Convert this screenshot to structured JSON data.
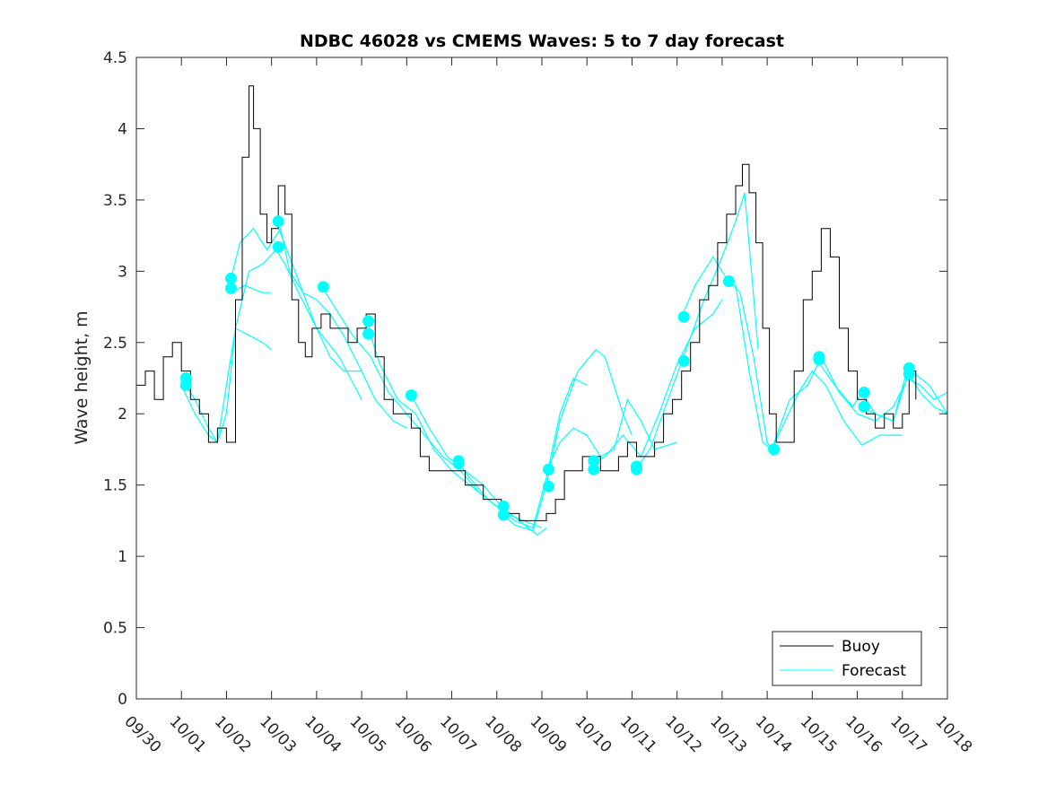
{
  "chart_data": {
    "type": "line",
    "title": "NDBC 46028 vs CMEMS Waves: 5 to 7 day forecast",
    "xlabel": "",
    "ylabel": "Wave height, m",
    "xlim": [
      0,
      18
    ],
    "ylim": [
      0,
      4.5
    ],
    "x_ticks": [
      {
        "value": 0,
        "label": "09/30"
      },
      {
        "value": 1,
        "label": "10/01"
      },
      {
        "value": 2,
        "label": "10/02"
      },
      {
        "value": 3,
        "label": "10/03"
      },
      {
        "value": 4,
        "label": "10/04"
      },
      {
        "value": 5,
        "label": "10/05"
      },
      {
        "value": 6,
        "label": "10/06"
      },
      {
        "value": 7,
        "label": "10/07"
      },
      {
        "value": 8,
        "label": "10/08"
      },
      {
        "value": 9,
        "label": "10/09"
      },
      {
        "value": 10,
        "label": "10/10"
      },
      {
        "value": 11,
        "label": "10/11"
      },
      {
        "value": 12,
        "label": "10/12"
      },
      {
        "value": 13,
        "label": "10/13"
      },
      {
        "value": 14,
        "label": "10/14"
      },
      {
        "value": 15,
        "label": "10/15"
      },
      {
        "value": 16,
        "label": "10/16"
      },
      {
        "value": 17,
        "label": "10/17"
      },
      {
        "value": 18,
        "label": "10/18"
      }
    ],
    "y_ticks": [
      {
        "value": 0,
        "label": "0"
      },
      {
        "value": 0.5,
        "label": "0.5"
      },
      {
        "value": 1,
        "label": "1"
      },
      {
        "value": 1.5,
        "label": "1.5"
      },
      {
        "value": 2,
        "label": "2"
      },
      {
        "value": 2.5,
        "label": "2.5"
      },
      {
        "value": 3,
        "label": "3"
      },
      {
        "value": 3.5,
        "label": "3.5"
      },
      {
        "value": 4,
        "label": "4"
      },
      {
        "value": 4.5,
        "label": "4.5"
      }
    ],
    "legend": {
      "position": "bottom-right",
      "entries": [
        {
          "label": "Buoy",
          "color": "#000000"
        },
        {
          "label": "Forecast",
          "color": "#00ffff"
        }
      ]
    },
    "colors": {
      "buoy": "#000000",
      "forecast": "#00ffff",
      "axes": "#262626"
    },
    "buoy": {
      "name": "Buoy",
      "x": [
        0,
        0.2,
        0.4,
        0.6,
        0.8,
        1.0,
        1.2,
        1.4,
        1.6,
        1.8,
        2.0,
        2.2,
        2.35,
        2.5,
        2.6,
        2.75,
        2.9,
        3.0,
        3.15,
        3.3,
        3.45,
        3.6,
        3.75,
        3.9,
        4.1,
        4.3,
        4.5,
        4.7,
        4.9,
        5.1,
        5.3,
        5.5,
        5.7,
        5.9,
        6.1,
        6.3,
        6.5,
        6.7,
        6.9,
        7.1,
        7.3,
        7.5,
        7.7,
        7.9,
        8.1,
        8.3,
        8.5,
        8.7,
        8.9,
        9.1,
        9.3,
        9.5,
        9.7,
        9.9,
        10.1,
        10.3,
        10.5,
        10.7,
        10.9,
        11.1,
        11.3,
        11.5,
        11.7,
        11.9,
        12.1,
        12.3,
        12.5,
        12.7,
        12.9,
        13.1,
        13.3,
        13.45,
        13.6,
        13.75,
        13.9,
        14.05,
        14.2,
        14.4,
        14.6,
        14.8,
        15.0,
        15.2,
        15.4,
        15.6,
        15.8,
        16.0,
        16.2,
        16.4,
        16.6,
        16.8,
        17.0,
        17.15,
        17.3
      ],
      "values": [
        2.2,
        2.3,
        2.1,
        2.4,
        2.5,
        2.3,
        2.1,
        2.0,
        1.8,
        1.9,
        1.8,
        2.8,
        3.8,
        4.3,
        4.0,
        3.4,
        3.2,
        3.3,
        3.6,
        3.4,
        2.8,
        2.5,
        2.4,
        2.6,
        2.7,
        2.6,
        2.6,
        2.5,
        2.6,
        2.7,
        2.4,
        2.1,
        2.0,
        2.0,
        1.9,
        1.7,
        1.6,
        1.6,
        1.6,
        1.6,
        1.5,
        1.5,
        1.4,
        1.4,
        1.3,
        1.3,
        1.25,
        1.25,
        1.25,
        1.3,
        1.4,
        1.6,
        1.6,
        1.7,
        1.7,
        1.6,
        1.6,
        1.7,
        1.8,
        1.7,
        1.7,
        1.8,
        2.0,
        2.1,
        2.3,
        2.5,
        2.8,
        2.9,
        3.2,
        3.4,
        3.6,
        3.75,
        3.55,
        3.2,
        2.6,
        2.0,
        1.8,
        1.8,
        2.3,
        2.8,
        3.0,
        3.3,
        3.1,
        2.6,
        2.3,
        2.1,
        2.0,
        1.9,
        2.0,
        1.9,
        2.0,
        2.3,
        2.1
      ]
    },
    "forecast": {
      "name": "Forecast",
      "series": [
        {
          "x": [
            1.0,
            1.3,
            1.6,
            1.8,
            2.0,
            2.2,
            2.5,
            2.8,
            3.1,
            3.3,
            3.6,
            4.0,
            4.5,
            5.0
          ],
          "values": [
            2.25,
            2.1,
            1.9,
            1.8,
            2.0,
            2.6,
            3.0,
            3.05,
            3.15,
            3.05,
            2.85,
            2.6,
            2.4,
            2.1
          ]
        },
        {
          "x": [
            1.0,
            1.3,
            1.6,
            1.8,
            2.0,
            2.2,
            2.5,
            2.8,
            3.0
          ],
          "values": [
            2.2,
            2.0,
            1.85,
            1.8,
            2.2,
            2.6,
            2.55,
            2.5,
            2.45
          ]
        },
        {
          "x": [
            2.1,
            2.3,
            2.6,
            2.9,
            3.2,
            3.4,
            3.7,
            4.0,
            4.3,
            4.6,
            5.0
          ],
          "values": [
            2.95,
            3.2,
            3.3,
            3.15,
            3.3,
            3.0,
            2.85,
            2.8,
            2.7,
            2.55,
            2.3
          ]
        },
        {
          "x": [
            2.1,
            2.4,
            2.8,
            3.0
          ],
          "values": [
            2.85,
            2.9,
            2.85,
            2.85
          ]
        },
        {
          "x": [
            3.1,
            3.4,
            3.7,
            4.0,
            4.3,
            4.6,
            5.0,
            5.3,
            5.7,
            6.0
          ],
          "values": [
            3.35,
            3.1,
            2.85,
            2.6,
            2.4,
            2.3,
            2.3,
            2.1,
            1.95,
            1.9
          ]
        },
        {
          "x": [
            4.1,
            4.4,
            4.8,
            5.2,
            5.6,
            6.0,
            6.4,
            6.8,
            7.2,
            7.6,
            8.0
          ],
          "values": [
            2.9,
            2.75,
            2.55,
            2.4,
            2.15,
            2.0,
            1.85,
            1.7,
            1.6,
            1.45,
            1.35
          ]
        },
        {
          "x": [
            5.1,
            5.4,
            5.8,
            6.2,
            6.6,
            7.0,
            7.4,
            7.8,
            8.2,
            8.6,
            9.0
          ],
          "values": [
            2.65,
            2.35,
            2.1,
            2.0,
            1.75,
            1.6,
            1.5,
            1.4,
            1.3,
            1.25,
            1.2
          ]
        },
        {
          "x": [
            6.1,
            6.5,
            6.9,
            7.3,
            7.7,
            8.1,
            8.5,
            8.9,
            9.1
          ],
          "values": [
            2.13,
            1.9,
            1.7,
            1.6,
            1.5,
            1.35,
            1.25,
            1.15,
            1.2
          ]
        },
        {
          "x": [
            7.1,
            7.4,
            7.8,
            8.1,
            8.4,
            8.8,
            9.1,
            9.4,
            9.7,
            10.0
          ],
          "values": [
            1.67,
            1.55,
            1.4,
            1.33,
            1.25,
            1.2,
            1.55,
            2.0,
            2.25,
            2.2
          ]
        },
        {
          "x": [
            8.1,
            8.4,
            8.8,
            9.1,
            9.4,
            9.8,
            10.2,
            10.4,
            10.8,
            11.0
          ],
          "values": [
            1.3,
            1.22,
            1.18,
            1.5,
            1.95,
            2.3,
            2.45,
            2.4,
            2.0,
            1.85
          ]
        },
        {
          "x": [
            9.1,
            9.4,
            9.7,
            10.0,
            10.3,
            10.6,
            10.9,
            11.2,
            11.5,
            12.0
          ],
          "values": [
            1.6,
            1.8,
            1.9,
            1.85,
            1.7,
            1.75,
            2.1,
            1.95,
            1.75,
            1.8
          ]
        },
        {
          "x": [
            10.1,
            10.4,
            10.8,
            11.2,
            11.6,
            12.0,
            12.4,
            12.8,
            13.0
          ],
          "values": [
            1.65,
            1.7,
            1.85,
            1.7,
            2.0,
            2.35,
            2.6,
            2.7,
            2.8
          ]
        },
        {
          "x": [
            11.1,
            11.4,
            11.8,
            12.2,
            12.6,
            13.0,
            13.3,
            13.5,
            13.8
          ],
          "values": [
            1.62,
            1.75,
            2.1,
            2.45,
            2.8,
            3.1,
            3.35,
            3.55,
            2.45
          ]
        },
        {
          "x": [
            12.1,
            12.4,
            12.8,
            13.1,
            13.4,
            13.7,
            14.0,
            14.1
          ],
          "values": [
            2.68,
            2.9,
            3.1,
            2.95,
            2.85,
            2.4,
            1.8,
            1.75
          ]
        },
        {
          "x": [
            13.1,
            13.3,
            13.6,
            13.9,
            14.1,
            14.4,
            14.7,
            15.0,
            15.3,
            15.7,
            16.1,
            16.5,
            17.0
          ],
          "values": [
            2.93,
            2.9,
            2.3,
            1.8,
            1.75,
            1.95,
            2.15,
            2.3,
            2.2,
            1.95,
            1.78,
            1.85,
            1.85
          ]
        },
        {
          "x": [
            14.1,
            14.5,
            14.9,
            15.2,
            15.6,
            16.0,
            16.4,
            16.8,
            17.2,
            17.6,
            18.0
          ],
          "values": [
            1.75,
            2.1,
            2.2,
            2.4,
            2.15,
            2.0,
            1.95,
            2.05,
            2.3,
            2.2,
            2.0
          ]
        },
        {
          "x": [
            15.1,
            15.5,
            15.9,
            16.1,
            16.4,
            16.8,
            17.1,
            17.4,
            17.7,
            18.0
          ],
          "values": [
            2.38,
            2.2,
            2.05,
            2.15,
            2.0,
            1.95,
            2.25,
            2.2,
            2.1,
            2.15
          ]
        },
        {
          "x": [
            16.1,
            16.4,
            16.8,
            17.1,
            17.4,
            17.7,
            18.0
          ],
          "values": [
            2.05,
            2.0,
            1.95,
            2.3,
            2.15,
            2.05,
            2.0
          ]
        }
      ],
      "markers": [
        {
          "x": 1.1,
          "value": 2.25
        },
        {
          "x": 1.1,
          "value": 2.2
        },
        {
          "x": 2.1,
          "value": 2.95
        },
        {
          "x": 2.1,
          "value": 2.88
        },
        {
          "x": 3.15,
          "value": 3.35
        },
        {
          "x": 3.15,
          "value": 3.17
        },
        {
          "x": 4.15,
          "value": 2.89
        },
        {
          "x": 5.15,
          "value": 2.65
        },
        {
          "x": 5.15,
          "value": 2.56
        },
        {
          "x": 6.1,
          "value": 2.13
        },
        {
          "x": 7.15,
          "value": 1.67
        },
        {
          "x": 7.15,
          "value": 1.65
        },
        {
          "x": 8.15,
          "value": 1.35
        },
        {
          "x": 8.15,
          "value": 1.29
        },
        {
          "x": 9.15,
          "value": 1.61
        },
        {
          "x": 9.15,
          "value": 1.49
        },
        {
          "x": 10.15,
          "value": 1.67
        },
        {
          "x": 10.15,
          "value": 1.61
        },
        {
          "x": 11.1,
          "value": 1.63
        },
        {
          "x": 11.1,
          "value": 1.61
        },
        {
          "x": 12.15,
          "value": 2.68
        },
        {
          "x": 12.15,
          "value": 2.37
        },
        {
          "x": 13.15,
          "value": 2.93
        },
        {
          "x": 14.15,
          "value": 1.75
        },
        {
          "x": 15.15,
          "value": 2.4
        },
        {
          "x": 15.15,
          "value": 2.38
        },
        {
          "x": 16.15,
          "value": 2.15
        },
        {
          "x": 16.15,
          "value": 2.05
        },
        {
          "x": 17.15,
          "value": 2.32
        },
        {
          "x": 17.15,
          "value": 2.28
        }
      ]
    }
  }
}
